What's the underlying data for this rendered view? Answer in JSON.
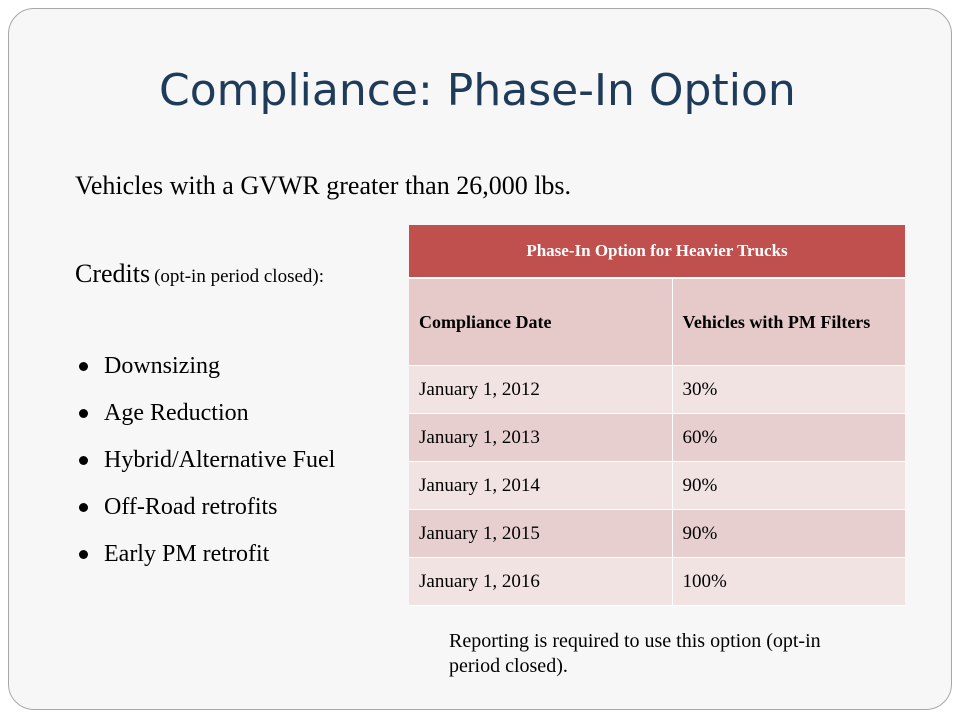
{
  "slide": {
    "title": "Compliance: Phase-In Option",
    "subtitle": "Vehicles with a GVWR greater than 26,000 lbs.",
    "credits": {
      "label": "Credits",
      "note": "(opt-in period closed):"
    },
    "bullets": [
      "Downsizing",
      "Age Reduction",
      "Hybrid/Alternative Fuel",
      "Off-Road retrofits",
      "Early PM retrofit"
    ],
    "table": {
      "title": "Phase-In Option for Heavier Trucks",
      "columns": [
        "Compliance Date",
        "Vehicles with PM Filters"
      ],
      "rows": [
        [
          "January 1, 2012",
          "30%"
        ],
        [
          "January 1, 2013",
          "60%"
        ],
        [
          "January 1, 2014",
          "90%"
        ],
        [
          "January 1, 2015",
          "90%"
        ],
        [
          "January 1, 2016",
          "100%"
        ]
      ]
    },
    "footnote": "Reporting is required to use this option (opt-in period closed).",
    "colors": {
      "title": "#1f3b5a",
      "table_header": "#c0504d",
      "row_light": "#f2e3e3",
      "row_dark": "#e8cfcf"
    }
  }
}
